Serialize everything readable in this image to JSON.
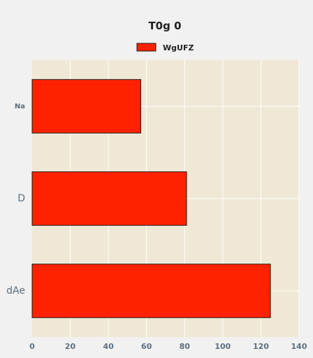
{
  "chart_data": {
    "type": "bar",
    "orientation": "horizontal",
    "title": "T0g 0",
    "categories": [
      "Na",
      "D",
      "dAe"
    ],
    "category_label_sizes": [
      "small",
      "large",
      "large"
    ],
    "series": [
      {
        "name": "WgUFZ",
        "color": "#ff2200",
        "values": [
          57,
          81,
          125
        ]
      }
    ],
    "xlabel": "",
    "ylabel": "",
    "xlim": [
      0,
      140
    ],
    "xticks": [
      0,
      20,
      40,
      60,
      80,
      100,
      120,
      140
    ],
    "grid": true,
    "legend_position": "top-center",
    "plot_background": "#efe8d6",
    "page_background": "#f1f1f1",
    "bar_edge_color": "#1a1a1a",
    "grid_color": "#ffffff",
    "tick_label_color": "#5b6f80"
  }
}
